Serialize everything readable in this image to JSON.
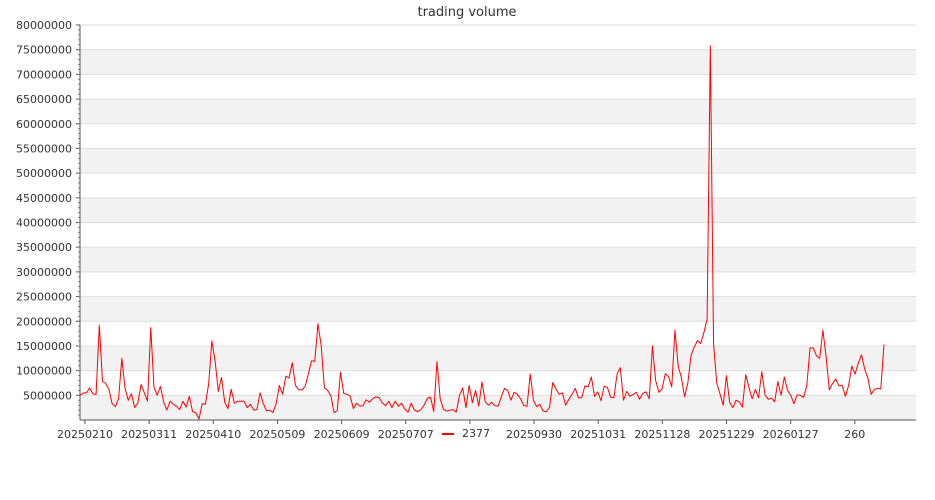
{
  "chart_data": {
    "type": "line",
    "title": "trading volume",
    "xlabel": "",
    "ylabel": "",
    "ylim": [
      0,
      80000000
    ],
    "y_ticks": [
      5000000,
      10000000,
      15000000,
      20000000,
      25000000,
      30000000,
      35000000,
      40000000,
      45000000,
      50000000,
      55000000,
      60000000,
      65000000,
      70000000,
      75000000,
      80000000
    ],
    "y_tick_labels": [
      "5000000",
      "10000000",
      "15000000",
      "20000000",
      "25000000",
      "30000000",
      "35000000",
      "40000000",
      "45000000",
      "50000000",
      "55000000",
      "60000000",
      "65000000",
      "70000000",
      "75000000",
      "80000000"
    ],
    "x_tick_labels": [
      "20250210",
      "20250311",
      "20250410",
      "20250509",
      "20250609",
      "20250707",
      "20250901",
      "20250930",
      "20251031",
      "20251128",
      "20251229",
      "20260127",
      "260"
    ],
    "grid": "horizontal, alternating shaded bands",
    "legend_position": "bottom-center",
    "series": [
      {
        "name": "2377",
        "color": "#ff0000",
        "values": [
          5000000,
          5500000,
          5500000,
          6500000,
          5300000,
          5200000,
          19200000,
          7800000,
          7400000,
          6200000,
          3300000,
          2700000,
          4300000,
          12500000,
          6500000,
          4000000,
          5300000,
          2500000,
          3500000,
          7200000,
          5500000,
          3800000,
          18700000,
          6700000,
          5000000,
          6800000,
          3700000,
          2000000,
          3800000,
          3200000,
          2800000,
          2100000,
          3800000,
          2600000,
          4800000,
          1700000,
          1500000,
          200000,
          3300000,
          3200000,
          7300000,
          16000000,
          12000000,
          5800000,
          8600000,
          3600000,
          2300000,
          6200000,
          3400000,
          3800000,
          3800000,
          3800000,
          2500000,
          3200000,
          2000000,
          2100000,
          5500000,
          3300000,
          1900000,
          2000000,
          1500000,
          3300000,
          7000000,
          5200000,
          8900000,
          8500000,
          11600000,
          7000000,
          6100000,
          6100000,
          6800000,
          9300000,
          12000000,
          11900000,
          19500000,
          15000000,
          6500000,
          6000000,
          4900000,
          1500000,
          1900000,
          9700000,
          5400000,
          5200000,
          4900000,
          2300000,
          3400000,
          2800000,
          2900000,
          4100000,
          3600000,
          4300000,
          4700000,
          4500000,
          3500000,
          2900000,
          3800000,
          2500000,
          3800000,
          2800000,
          3400000,
          2200000,
          1600000,
          3400000,
          2000000,
          1700000,
          2100000,
          3000000,
          4400000,
          4600000,
          1700000,
          11800000,
          4300000,
          2200000,
          1800000,
          2000000,
          2100000,
          1600000,
          5000000,
          6500000,
          2500000,
          7000000,
          3500000,
          6000000,
          2800000,
          7700000,
          3700000,
          3000000,
          3600000,
          2900000,
          2800000,
          4700000,
          6400000,
          6000000,
          4000000,
          5600000,
          5200000,
          4300000,
          2900000,
          2800000,
          9300000,
          4000000,
          2700000,
          3200000,
          1800000,
          1700000,
          2600000,
          7600000,
          6300000,
          5200000,
          5500000,
          3000000,
          4200000,
          5200000,
          6400000,
          4500000,
          4500000,
          6900000,
          6700000,
          8700000,
          4800000,
          5700000,
          3900000,
          6800000,
          6600000,
          4600000,
          4500000,
          9300000,
          10600000,
          4000000,
          5800000,
          4800000,
          5200000,
          5600000,
          4200000,
          5400000,
          5700000,
          4300000,
          15000000,
          8000000,
          5600000,
          6300000,
          9400000,
          8800000,
          6700000,
          18200000,
          10900000,
          8600000,
          4700000,
          7500000,
          13100000,
          14800000,
          16100000,
          15500000,
          17700000,
          20500000,
          75800000,
          15500000,
          7500000,
          5300000,
          3000000,
          9000000,
          3600000,
          2500000,
          4000000,
          3700000,
          2600000,
          9200000,
          6600000,
          4300000,
          6200000,
          4500000,
          9800000,
          5100000,
          4200000,
          4400000,
          3700000,
          7800000,
          5000000,
          8700000,
          6000000,
          5000000,
          3300000,
          5100000,
          5000000,
          4600000,
          7000000,
          14600000,
          14600000,
          13000000,
          12500000,
          18200000,
          12800000,
          6100000,
          7400000,
          8300000,
          6900000,
          7000000,
          4800000,
          7000000,
          10900000,
          9300000,
          11500000,
          13200000,
          10300000,
          8400000,
          5200000,
          6200000,
          6400000,
          6300000,
          15300000
        ]
      }
    ]
  }
}
